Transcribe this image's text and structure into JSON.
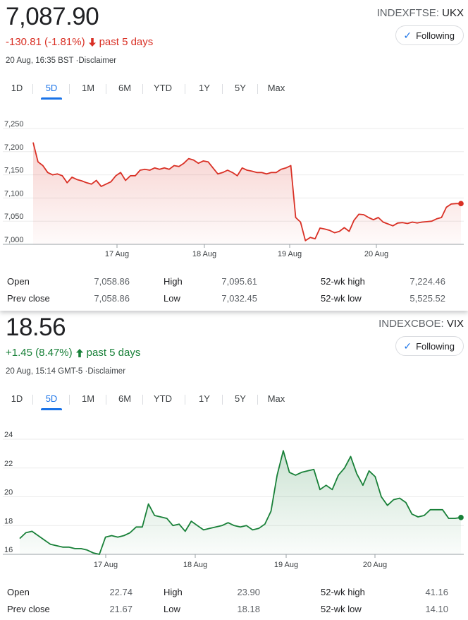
{
  "cards": [
    {
      "price": "7,087.90",
      "exchange": "INDEXFTSE:",
      "symbol": "UKX",
      "follow_label": "Following",
      "change": "-130.81 (-1.81%)",
      "change_period": "past 5 days",
      "direction": "down",
      "color": "#d93025",
      "timestamp": "20 Aug, 16:35 BST",
      "disclaimer": "Disclaimer",
      "tabs": [
        "1D",
        "5D",
        "1M",
        "6M",
        "YTD",
        "1Y",
        "5Y",
        "Max"
      ],
      "active_tab": "5D",
      "stats": {
        "open_label": "Open",
        "open": "7,058.86",
        "prev_label": "Prev close",
        "prev": "7,058.86",
        "high_label": "High",
        "high": "7,095.61",
        "low_label": "Low",
        "low": "7,032.45",
        "wkhigh_label": "52-wk high",
        "wkhigh": "7,224.46",
        "wklow_label": "52-wk low",
        "wklow": "5,525.52"
      }
    },
    {
      "price": "18.56",
      "exchange": "INDEXCBOE:",
      "symbol": "VIX",
      "follow_label": "Following",
      "change": "+1.45 (8.47%)",
      "change_period": "past 5 days",
      "direction": "up",
      "color": "#188038",
      "timestamp": "20 Aug, 15:14 GMT-5",
      "disclaimer": "Disclaimer",
      "tabs": [
        "1D",
        "5D",
        "1M",
        "6M",
        "YTD",
        "1Y",
        "5Y",
        "Max"
      ],
      "active_tab": "5D",
      "stats": {
        "open_label": "Open",
        "open": "22.74",
        "prev_label": "Prev close",
        "prev": "21.67",
        "high_label": "High",
        "high": "23.90",
        "low_label": "Low",
        "low": "18.18",
        "wkhigh_label": "52-wk high",
        "wkhigh": "41.16",
        "wklow_label": "52-wk low",
        "wklow": "14.10"
      }
    }
  ],
  "chart_data": [
    {
      "type": "line",
      "title": "",
      "ylim": [
        7000,
        7250
      ],
      "y_ticks": [
        "7,000",
        "7,050",
        "7,100",
        "7,150",
        "7,200",
        "7,250"
      ],
      "x_ticks": [
        "17 Aug",
        "18 Aug",
        "19 Aug",
        "20 Aug"
      ],
      "grid": true,
      "series": [
        {
          "color": "#d93025",
          "values": [
            7220,
            7178,
            7170,
            7155,
            7150,
            7152,
            7148,
            7133,
            7145,
            7140,
            7137,
            7133,
            7130,
            7138,
            7125,
            7130,
            7135,
            7148,
            7155,
            7138,
            7148,
            7148,
            7160,
            7162,
            7160,
            7165,
            7162,
            7165,
            7162,
            7170,
            7168,
            7175,
            7185,
            7182,
            7175,
            7180,
            7178,
            7165,
            7152,
            7155,
            7160,
            7155,
            7148,
            7165,
            7160,
            7158,
            7155,
            7155,
            7152,
            7155,
            7155,
            7162,
            7165,
            7170,
            7058,
            7048,
            7008,
            7015,
            7012,
            7035,
            7033,
            7030,
            7025,
            7028,
            7036,
            7028,
            7052,
            7065,
            7064,
            7058,
            7053,
            7058,
            7048,
            7044,
            7040,
            7046,
            7047,
            7045,
            7048,
            7046,
            7048,
            7049,
            7050,
            7055,
            7058,
            7080,
            7087,
            7088,
            7087.9
          ]
        }
      ]
    },
    {
      "type": "line",
      "title": "",
      "ylim": [
        16,
        24
      ],
      "y_ticks": [
        "16",
        "18",
        "20",
        "22",
        "24"
      ],
      "x_ticks": [
        "17 Aug",
        "18 Aug",
        "19 Aug",
        "20 Aug"
      ],
      "grid": true,
      "series": [
        {
          "color": "#188038",
          "values": [
            17.1,
            17.5,
            17.6,
            17.3,
            17.0,
            16.7,
            16.6,
            16.5,
            16.5,
            16.4,
            16.4,
            16.3,
            16.1,
            16.0,
            17.2,
            17.3,
            17.2,
            17.3,
            17.5,
            17.9,
            17.9,
            19.5,
            18.7,
            18.6,
            18.5,
            18.0,
            18.1,
            17.6,
            18.3,
            18.0,
            17.7,
            17.8,
            17.9,
            18.0,
            18.2,
            18.0,
            17.9,
            18.0,
            17.7,
            17.8,
            18.1,
            19.0,
            21.5,
            23.2,
            21.7,
            21.5,
            21.7,
            21.8,
            21.9,
            20.5,
            20.8,
            20.5,
            21.5,
            22.0,
            22.8,
            21.6,
            20.8,
            21.8,
            21.4,
            20.0,
            19.4,
            19.8,
            19.9,
            19.6,
            18.8,
            18.6,
            18.7,
            19.1,
            19.1,
            19.1,
            18.5,
            18.5,
            18.56
          ]
        }
      ]
    }
  ]
}
